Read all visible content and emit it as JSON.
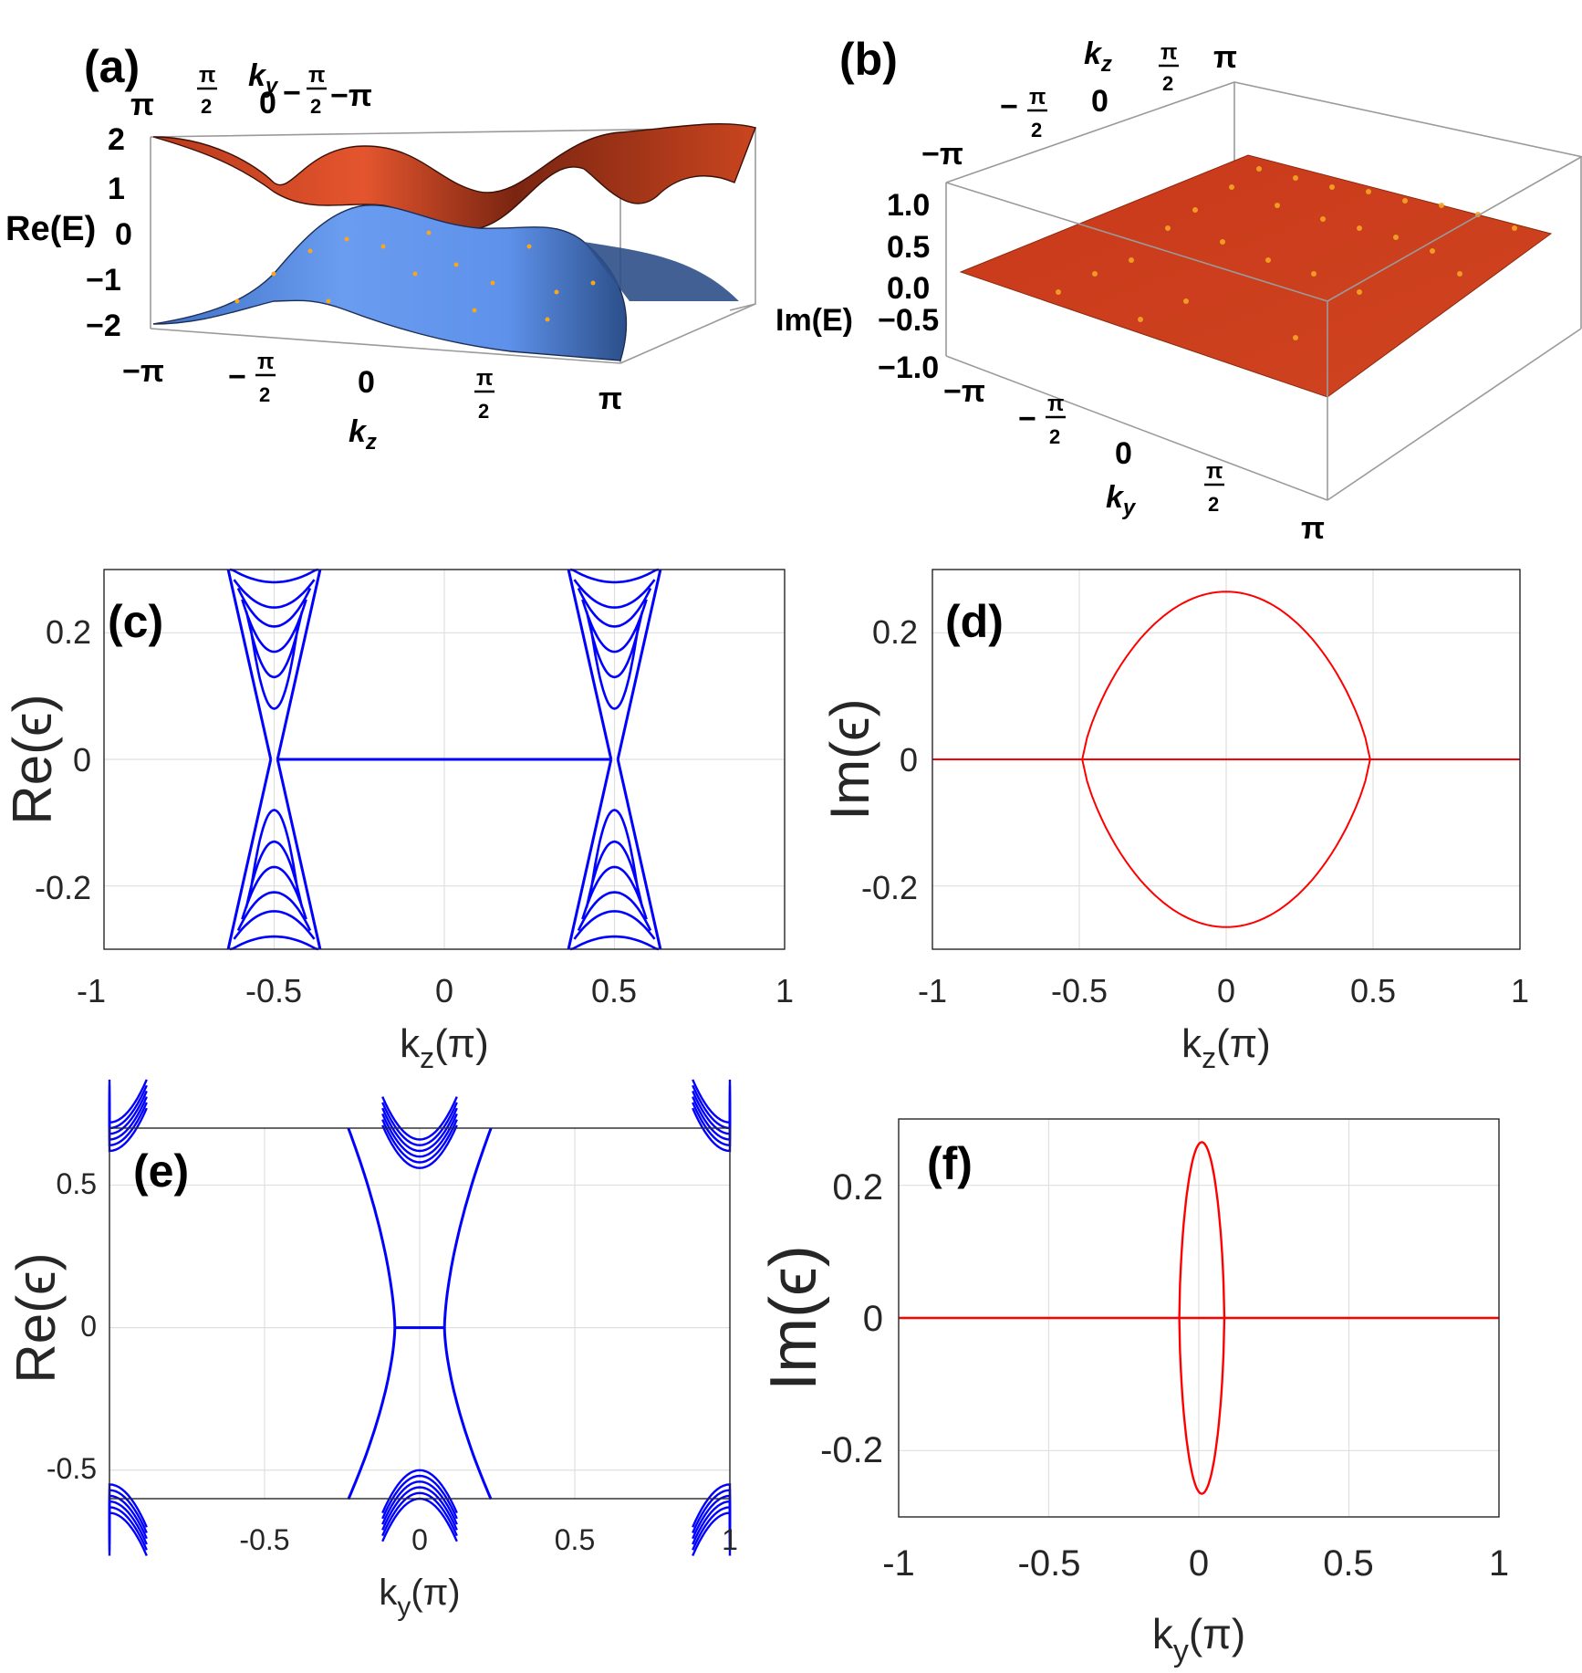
{
  "chart_data": [
    {
      "panel": "(a)",
      "type": "surface-3d",
      "title": "",
      "zlabel": "Re(E)",
      "xlabel": "k_z",
      "ylabel": "k_y",
      "xticks": [
        "−π",
        "−π/2",
        "0",
        "π/2",
        "π"
      ],
      "yticks": [
        "π",
        "π/2",
        "0",
        "−π/2",
        "−π"
      ],
      "zticks": [
        "2",
        "1",
        "0",
        "−1",
        "−2"
      ],
      "zlim": [
        -2,
        2
      ],
      "series": [
        {
          "name": "upper band",
          "color": "#cc4422"
        },
        {
          "name": "lower band",
          "color": "#5b8fe0"
        }
      ]
    },
    {
      "panel": "(b)",
      "type": "surface-3d",
      "title": "",
      "zlabel": "Im(E)",
      "xlabel": "k_y",
      "ylabel": "k_z",
      "xticks": [
        "−π",
        "−π/2",
        "0",
        "π/2",
        "π"
      ],
      "yticks": [
        "−π",
        "−π/2",
        "0",
        "π/2",
        "π"
      ],
      "zticks": [
        "1.0",
        "0.5",
        "0.0",
        "−0.5",
        "−1.0"
      ],
      "zlim": [
        -1,
        1
      ],
      "series": [
        {
          "name": "Im(E) surface",
          "value": 0.0,
          "color": "#cc3a15"
        }
      ]
    },
    {
      "panel": "(c)",
      "type": "line",
      "xlabel": "k_z(π)",
      "ylabel": "Re(ε)",
      "xlim": [
        -1,
        1
      ],
      "ylim": [
        -0.3,
        0.3
      ],
      "xticks": [
        "-1",
        "-0.5",
        "0",
        "0.5",
        "1"
      ],
      "yticks": [
        "0.2",
        "0",
        "-0.2"
      ],
      "color": "#0000ff",
      "series": [
        {
          "name": "flat zero mode",
          "x": [
            -0.49,
            0.49
          ],
          "y": [
            0,
            0
          ]
        },
        {
          "name": "bulk band minima (k_z = ±0.5)",
          "x": [
            -0.5,
            0.5
          ],
          "y": [
            0.08,
            0.08
          ]
        },
        {
          "name": "bulk band tops",
          "values": [
            0.08,
            0.13,
            0.17,
            0.21,
            0.24,
            0.28
          ]
        }
      ]
    },
    {
      "panel": "(d)",
      "type": "line",
      "xlabel": "k_z(π)",
      "ylabel": "Im(ε)",
      "xlim": [
        -1,
        1
      ],
      "ylim": [
        -0.3,
        0.3
      ],
      "xticks": [
        "-1",
        "-0.5",
        "0",
        "0.5",
        "1"
      ],
      "yticks": [
        "0.2",
        "0",
        "-0.2"
      ],
      "color": "#ff0000",
      "series": [
        {
          "name": "zero line",
          "x": [
            -1,
            1
          ],
          "y": [
            0,
            0
          ]
        },
        {
          "name": "upper arc",
          "x": [
            -0.49,
            -0.25,
            0,
            0.25,
            0.49
          ],
          "y": [
            0,
            0.19,
            0.265,
            0.19,
            0
          ]
        },
        {
          "name": "lower arc",
          "x": [
            -0.49,
            -0.25,
            0,
            0.25,
            0.49
          ],
          "y": [
            0,
            -0.19,
            -0.265,
            -0.19,
            0
          ]
        }
      ]
    },
    {
      "panel": "(e)",
      "type": "line",
      "xlabel": "k_y(π)",
      "ylabel": "Re(ε)",
      "xlim": [
        -1,
        1
      ],
      "ylim": [
        -0.6,
        0.7
      ],
      "xticks": [
        "-0.5",
        "0",
        "0.5",
        "1"
      ],
      "yticks": [
        "0.5",
        "0",
        "-0.5"
      ],
      "color": "#0000ff",
      "series": [
        {
          "name": "flat zero mode",
          "x": [
            -0.08,
            0.08
          ],
          "y": [
            0,
            0
          ]
        },
        {
          "name": "surface arc",
          "x": [
            -0.08,
            -0.15,
            -0.22
          ],
          "y": [
            0,
            0.4,
            0.7
          ]
        }
      ]
    },
    {
      "panel": "(f)",
      "type": "line",
      "xlabel": "k_y(π)",
      "ylabel": "Im(ε)",
      "xlim": [
        -1,
        1
      ],
      "ylim": [
        -0.3,
        0.3
      ],
      "xticks": [
        "-1",
        "-0.5",
        "0",
        "0.5",
        "1"
      ],
      "yticks": [
        "0.2",
        "0",
        "-0.2"
      ],
      "color": "#ff0000",
      "series": [
        {
          "name": "zero line",
          "x": [
            -1,
            1
          ],
          "y": [
            0,
            0
          ]
        },
        {
          "name": "loop",
          "x": [
            -0.09,
            0,
            0.09
          ],
          "y": [
            0,
            0.265,
            0
          ]
        }
      ]
    }
  ],
  "labels": {
    "a": "(a)",
    "b": "(b)",
    "c": "(c)",
    "d": "(d)",
    "e": "(e)",
    "f": "(f)",
    "a_z": "Re(E)",
    "a_ky": "k",
    "a_ky_sub": "y",
    "a_kz": "k",
    "a_kz_sub": "z",
    "b_z": "Im(E)",
    "b_kz": "k",
    "b_kz_sub": "z",
    "b_ky": "k",
    "b_ky_sub": "y",
    "pi": "π",
    "neg_pi": "−π",
    "two": "2",
    "minus": "−",
    "zero": "0",
    "c_ylabel": "Re(ϵ)",
    "d_ylabel": "Im(ϵ)",
    "e_ylabel": "Re(ϵ)",
    "f_ylabel": "Im(ϵ)",
    "kz_pi_k": "k",
    "kz_pi_sub": "z",
    "ky_pi_sub": "y",
    "pi_paren": "(π)"
  },
  "colors": {
    "blue": "#0000ff",
    "red": "#ff0000",
    "upper_surface": "#cc4422",
    "lower_surface": "#5b8fe0",
    "im_surface": "#cc3a15",
    "dots": "#f5a623"
  }
}
